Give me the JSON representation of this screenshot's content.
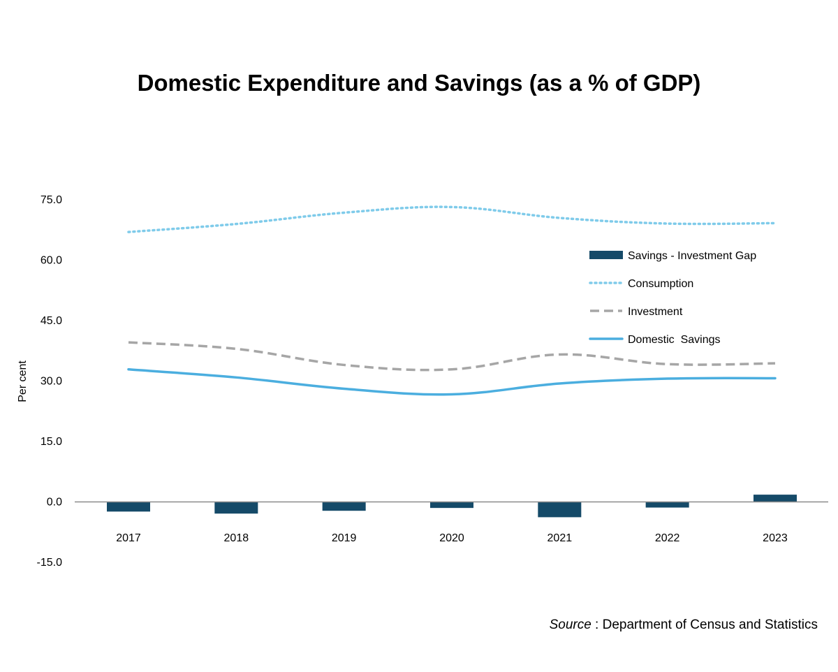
{
  "chart_data": {
    "type": "bar",
    "title": "Domestic Expenditure and Savings (as a % of GDP)",
    "ylabel": "Per cent",
    "xlabel": "",
    "categories": [
      "2017",
      "2018",
      "2019",
      "2020",
      "2021",
      "2022",
      "2023"
    ],
    "ylim": [
      -15,
      75
    ],
    "yticks": [
      "75.0",
      "60.0",
      "45.0",
      "30.0",
      "15.0",
      "0.0",
      "-15.0"
    ],
    "grid": false,
    "legend_position": "right",
    "series": [
      {
        "name": "Savings - Investment Gap",
        "type": "bar",
        "style": "solid",
        "color": "#154a68",
        "values": [
          -2.4,
          -2.9,
          -2.2,
          -1.5,
          -3.8,
          -1.4,
          1.8
        ]
      },
      {
        "name": "Consumption",
        "type": "line",
        "style": "dotted",
        "color": "#7fcbea",
        "values": [
          67.0,
          69.0,
          71.8,
          73.2,
          70.5,
          69.1,
          69.2
        ]
      },
      {
        "name": "Investment",
        "type": "line",
        "style": "dashed",
        "color": "#a6a6a6",
        "values": [
          39.6,
          38.0,
          34.0,
          32.9,
          36.6,
          34.2,
          34.4
        ]
      },
      {
        "name": "Domestic  Savings",
        "type": "line",
        "style": "solid",
        "color": "#4baedf",
        "values": [
          32.9,
          30.9,
          28.1,
          26.7,
          29.4,
          30.6,
          30.7
        ]
      }
    ]
  },
  "source": {
    "label": "Source",
    "text": " : Department of Census and Statistics"
  }
}
